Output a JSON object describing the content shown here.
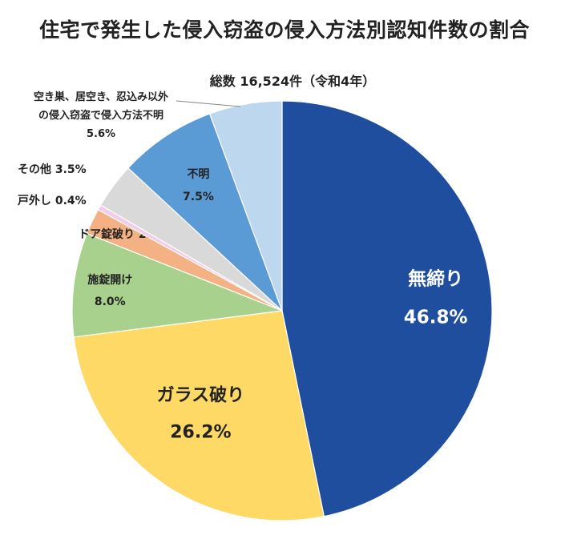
{
  "title": "住宅で発生した侵入窃盗の侵入方法別認知件数の割合",
  "subtitle": "総数 16,524件（令和4年）",
  "chart_data": {
    "type": "pie",
    "start_angle_deg": 0,
    "direction": "clockwise",
    "slices": [
      {
        "label": "無締り",
        "value": 46.8,
        "value_text": "46.8%",
        "color": "#1f4e9e"
      },
      {
        "label": "ガラス破り",
        "value": 26.2,
        "value_text": "26.2%",
        "color": "#ffd966"
      },
      {
        "label": "施錠開け",
        "value": 8.0,
        "value_text": "8.0%",
        "color": "#a9d18e"
      },
      {
        "label": "ドア錠破り",
        "value": 2.0,
        "value_text": "2.0%",
        "color": "#f4b183"
      },
      {
        "label": "戸外し",
        "value": 0.4,
        "value_text": "0.4%",
        "color": "#f4cce8"
      },
      {
        "label": "その他",
        "value": 3.5,
        "value_text": "3.5%",
        "color": "#d9d9d9"
      },
      {
        "label": "不明",
        "value": 7.5,
        "value_text": "7.5%",
        "color": "#5b9bd5"
      },
      {
        "label": "空き巣、居空き、忍込み以外の侵入窃盗で侵入方法不明",
        "label_lines": [
          "空き巣、居空き、忍込み以外",
          "の侵入窃盗で侵入方法不明"
        ],
        "value": 5.6,
        "value_text": "5.6%",
        "color": "#bdd7ee"
      }
    ]
  }
}
